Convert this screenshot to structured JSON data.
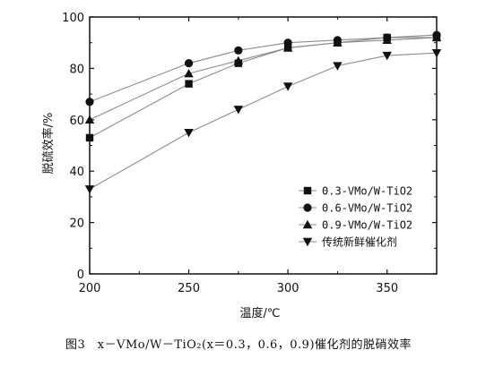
{
  "chart_data": {
    "type": "line",
    "xlabel": "温度/℃",
    "ylabel": "脱硫效率/%",
    "xlim": [
      200,
      375
    ],
    "ylim": [
      0,
      100
    ],
    "xticks": [
      200,
      250,
      300,
      350
    ],
    "yticks": [
      0,
      20,
      40,
      60,
      80,
      100
    ],
    "grid": false,
    "legend_position": "lower-right",
    "colors": {
      "axis": "#111111",
      "line": "#8c8c8c",
      "marker": "#111111"
    },
    "series": [
      {
        "name": "0.3-VMo/W-TiO2",
        "marker": "square",
        "x": [
          200,
          250,
          275,
          300,
          325,
          350,
          375
        ],
        "y": [
          53,
          74,
          82,
          88,
          90,
          92,
          92
        ]
      },
      {
        "name": "0.6-VMo/W-TiO2",
        "marker": "circle",
        "x": [
          200,
          250,
          275,
          300,
          325,
          350,
          375
        ],
        "y": [
          67,
          82,
          87,
          90,
          91,
          92,
          93
        ]
      },
      {
        "name": "0.9-VMo/W-TiO2",
        "marker": "triangle-up",
        "x": [
          200,
          250,
          275,
          300,
          325,
          350,
          375
        ],
        "y": [
          60,
          78,
          83,
          88,
          90,
          91,
          92
        ]
      },
      {
        "name": "传统新鲜催化剂",
        "marker": "triangle-down",
        "x": [
          200,
          250,
          275,
          300,
          325,
          350,
          375
        ],
        "y": [
          33,
          55,
          64,
          73,
          81,
          85,
          86
        ]
      }
    ]
  },
  "caption": "图3　x－VMo/W－TiO₂(x＝0.3，0.6，0.9)催化剂的脱硝效率"
}
